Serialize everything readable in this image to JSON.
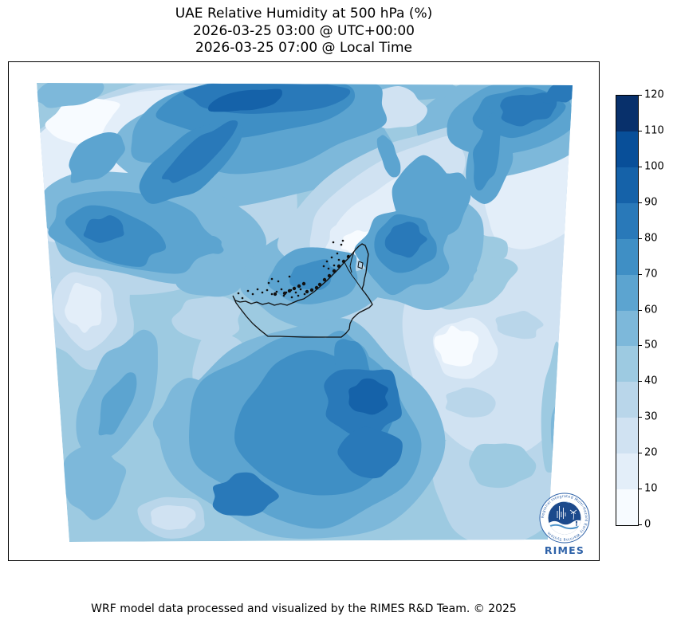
{
  "title": {
    "line1": "UAE Relative Humidity at 500 hPa (%)",
    "line2": "2026-03-25 03:00 @ UTC+00:00",
    "line3": "2026-03-25 07:00 @ Local Time"
  },
  "footer": {
    "credit": "WRF model data processed and visualized by the RIMES R&D Team. © 2025"
  },
  "logo": {
    "wordmark": "RIMES",
    "motto": "Regional Integrated Multi-Hazard Early Warning System"
  },
  "colors": {
    "axes_border": "#000000",
    "outline": "#111111",
    "logo_navy": "#1c4a8c",
    "logo_blue": "#2e62a8",
    "logo_wave": "#4e93c9"
  },
  "chart_data": {
    "type": "heatmap",
    "variable": "Relative Humidity",
    "pressure_level_hpa": 500,
    "units": "%",
    "region": "UAE and surrounding area (WRF model domain)",
    "title": "UAE Relative Humidity at 500 hPa (%)",
    "valid_time_utc": "2026-03-25 03:00 @ UTC+00:00",
    "valid_time_local": "2026-03-25 07:00 @ Local Time",
    "legend_position": "right",
    "grid": false,
    "colorbar": {
      "min": 0,
      "max": 120,
      "step": 10,
      "ticks": [
        0,
        10,
        20,
        30,
        40,
        50,
        60,
        70,
        80,
        90,
        100,
        110,
        120
      ],
      "palette": [
        "#f7fbff",
        "#e3eef9",
        "#d0e2f2",
        "#b9d6ea",
        "#9dcae1",
        "#7db8da",
        "#5ca4d0",
        "#3f8fc5",
        "#2979b9",
        "#1562a9",
        "#084f99",
        "#08306b"
      ],
      "orientation": "vertical"
    },
    "value_range_on_map": [
      10,
      100
    ],
    "projection_quad": [
      [
        35,
        26
      ],
      [
        707,
        29
      ],
      [
        676,
        599
      ],
      [
        76,
        602
      ]
    ],
    "base_level": 4,
    "feature_format": "[cx,cy,rx,ry,rotation_deg,level] plot px; level k = k*10..(k+1)*10 %RH",
    "contour_features": [
      [
        190,
        150,
        195,
        135,
        -20,
        3
      ],
      [
        620,
        300,
        150,
        200,
        5,
        3
      ],
      [
        520,
        330,
        105,
        92,
        0,
        3
      ],
      [
        405,
        508,
        46,
        30,
        0,
        3
      ],
      [
        205,
        572,
        42,
        27,
        0,
        3
      ],
      [
        98,
        312,
        62,
        68,
        -10,
        3
      ],
      [
        250,
        323,
        42,
        30,
        0,
        3
      ],
      [
        268,
        390,
        38,
        48,
        0,
        3
      ],
      [
        615,
        520,
        85,
        85,
        0,
        3
      ],
      [
        330,
        250,
        24,
        18,
        0,
        3
      ],
      [
        160,
        130,
        158,
        95,
        -22,
        2
      ],
      [
        640,
        158,
        98,
        95,
        0,
        2
      ],
      [
        620,
        330,
        125,
        155,
        5,
        2
      ],
      [
        98,
        312,
        40,
        48,
        -10,
        2
      ],
      [
        405,
        508,
        29,
        18,
        0,
        2
      ],
      [
        205,
        572,
        27,
        17,
        0,
        2
      ],
      [
        128,
        105,
        112,
        62,
        -22,
        1
      ],
      [
        655,
        165,
        66,
        72,
        0,
        1
      ],
      [
        572,
        362,
        40,
        38,
        0,
        1
      ],
      [
        95,
        308,
        24,
        30,
        -10,
        1
      ],
      [
        92,
        72,
        46,
        26,
        -22,
        0
      ],
      [
        562,
        357,
        26,
        24,
        0,
        0
      ],
      [
        640,
        330,
        28,
        17,
        0,
        3
      ],
      [
        578,
        426,
        32,
        20,
        0,
        3
      ],
      [
        595,
        235,
        28,
        20,
        0,
        4
      ],
      [
        618,
        505,
        42,
        30,
        0,
        4
      ],
      [
        580,
        275,
        55,
        30,
        -15,
        4
      ],
      [
        688,
        440,
        18,
        80,
        2,
        4
      ],
      [
        305,
        98,
        180,
        80,
        -6,
        5
      ],
      [
        625,
        75,
        112,
        62,
        -8,
        5
      ],
      [
        480,
        33,
        92,
        20,
        -3,
        5
      ],
      [
        180,
        208,
        150,
        68,
        8,
        5
      ],
      [
        385,
        270,
        88,
        57,
        -10,
        5
      ],
      [
        505,
        230,
        88,
        78,
        0,
        5
      ],
      [
        374,
        465,
        170,
        140,
        5,
        5
      ],
      [
        140,
        418,
        42,
        82,
        25,
        5
      ],
      [
        235,
        453,
        48,
        58,
        0,
        5
      ],
      [
        105,
        525,
        40,
        45,
        10,
        5
      ],
      [
        75,
        35,
        48,
        20,
        -15,
        5
      ],
      [
        255,
        268,
        45,
        25,
        0,
        5
      ],
      [
        560,
        268,
        28,
        14,
        -15,
        5
      ],
      [
        690,
        470,
        10,
        45,
        2,
        5
      ],
      [
        468,
        175,
        150,
        62,
        -33,
        3
      ],
      [
        475,
        172,
        118,
        45,
        -34,
        2
      ],
      [
        462,
        195,
        72,
        30,
        -38,
        1
      ],
      [
        435,
        222,
        36,
        26,
        -20,
        1
      ],
      [
        480,
        58,
        40,
        26,
        0,
        2
      ],
      [
        438,
        226,
        20,
        14,
        -20,
        0
      ],
      [
        315,
        75,
        162,
        57,
        -8,
        6
      ],
      [
        110,
        120,
        42,
        24,
        -30,
        6
      ],
      [
        630,
        70,
        82,
        44,
        -8,
        6
      ],
      [
        605,
        118,
        26,
        62,
        12,
        6
      ],
      [
        155,
        213,
        105,
        48,
        10,
        6
      ],
      [
        382,
        268,
        57,
        34,
        -10,
        6
      ],
      [
        495,
        235,
        57,
        52,
        0,
        6
      ],
      [
        545,
        180,
        29,
        46,
        20,
        6
      ],
      [
        520,
        165,
        38,
        45,
        10,
        6
      ],
      [
        372,
        465,
        142,
        112,
        5,
        6
      ],
      [
        420,
        390,
        36,
        56,
        -10,
        6
      ],
      [
        135,
        430,
        18,
        40,
        25,
        6
      ],
      [
        477,
        118,
        11,
        30,
        -20,
        6
      ],
      [
        253,
        230,
        16,
        12,
        0,
        6
      ],
      [
        315,
        55,
        128,
        36,
        -6,
        7
      ],
      [
        230,
        125,
        72,
        32,
        -35,
        7
      ],
      [
        640,
        63,
        57,
        30,
        -8,
        7
      ],
      [
        600,
        115,
        16,
        48,
        12,
        7
      ],
      [
        135,
        218,
        60,
        32,
        15,
        7
      ],
      [
        380,
        267,
        31,
        18,
        -10,
        7
      ],
      [
        495,
        228,
        39,
        34,
        0,
        7
      ],
      [
        385,
        455,
        97,
        87,
        10,
        7
      ],
      [
        430,
        385,
        21,
        39,
        -10,
        7
      ],
      [
        320,
        42,
        97,
        24,
        -4,
        8
      ],
      [
        240,
        115,
        57,
        17,
        -40,
        8
      ],
      [
        650,
        58,
        36,
        19,
        -8,
        8
      ],
      [
        700,
        33,
        33,
        15,
        -25,
        8
      ],
      [
        120,
        210,
        26,
        16,
        0,
        8
      ],
      [
        497,
        222,
        25,
        21,
        0,
        8
      ],
      [
        445,
        425,
        50,
        44,
        0,
        8
      ],
      [
        455,
        490,
        39,
        31,
        0,
        8
      ],
      [
        295,
        545,
        39,
        27,
        0,
        8
      ],
      [
        295,
        48,
        46,
        13,
        -10,
        9
      ],
      [
        450,
        420,
        25,
        21,
        0,
        9
      ]
    ],
    "uae_boundary": {
      "outline": [
        [
          281,
          293
        ],
        [
          284,
          299
        ],
        [
          290,
          301
        ],
        [
          297,
          300
        ],
        [
          304,
          303
        ],
        [
          311,
          301
        ],
        [
          318,
          304
        ],
        [
          326,
          302
        ],
        [
          333,
          305
        ],
        [
          341,
          303
        ],
        [
          349,
          305
        ],
        [
          356,
          302
        ],
        [
          363,
          299
        ],
        [
          370,
          297
        ],
        [
          376,
          293
        ],
        [
          383,
          288
        ],
        [
          391,
          281
        ],
        [
          399,
          274
        ],
        [
          407,
          266
        ],
        [
          414,
          259
        ],
        [
          420,
          252
        ],
        [
          426,
          246
        ],
        [
          431,
          240
        ],
        [
          435,
          235
        ],
        [
          439,
          231
        ],
        [
          443,
          228
        ],
        [
          447,
          230
        ],
        [
          449,
          235
        ],
        [
          451,
          241
        ],
        [
          450,
          248
        ],
        [
          449,
          256
        ],
        [
          448,
          264
        ],
        [
          446,
          272
        ],
        [
          445,
          279
        ],
        [
          443,
          285
        ],
        [
          447,
          290
        ],
        [
          452,
          297
        ],
        [
          456,
          304
        ],
        [
          452,
          308
        ],
        [
          446,
          311
        ],
        [
          440,
          314
        ],
        [
          436,
          317
        ],
        [
          431,
          322
        ],
        [
          428,
          328
        ],
        [
          427,
          335
        ],
        [
          423,
          340
        ],
        [
          417,
          345
        ],
        [
          400,
          345
        ],
        [
          370,
          345
        ],
        [
          340,
          344
        ],
        [
          325,
          344
        ],
        [
          315,
          336
        ],
        [
          306,
          328
        ],
        [
          298,
          319
        ],
        [
          291,
          310
        ],
        [
          285,
          302
        ],
        [
          281,
          293
        ]
      ],
      "inner_borders": [
        [
          [
            421,
            251
          ],
          [
            425,
            259
          ],
          [
            430,
            267
          ],
          [
            436,
            275
          ],
          [
            440,
            281
          ],
          [
            443,
            285
          ]
        ],
        [
          [
            433,
            238
          ],
          [
            430,
            247
          ],
          [
            428,
            256
          ],
          [
            430,
            264
          ]
        ],
        [
          [
            439,
            250
          ],
          [
            444,
            252
          ],
          [
            443,
            259
          ],
          [
            438,
            257
          ],
          [
            439,
            250
          ]
        ]
      ],
      "islands": [
        [
          288,
          290
        ],
        [
          293,
          296
        ],
        [
          300,
          287
        ],
        [
          306,
          291
        ],
        [
          312,
          285
        ],
        [
          318,
          289
        ],
        [
          324,
          286
        ],
        [
          330,
          291
        ],
        [
          336,
          288
        ],
        [
          342,
          285
        ],
        [
          348,
          289
        ],
        [
          354,
          286
        ],
        [
          360,
          289
        ],
        [
          366,
          285
        ],
        [
          371,
          291
        ],
        [
          345,
          293
        ],
        [
          355,
          295
        ],
        [
          363,
          293
        ],
        [
          326,
          277
        ],
        [
          330,
          272
        ],
        [
          338,
          275
        ],
        [
          352,
          269
        ],
        [
          407,
          226
        ],
        [
          417,
          229
        ],
        [
          419,
          224
        ],
        [
          412,
          240
        ],
        [
          405,
          245
        ],
        [
          399,
          250
        ],
        [
          395,
          256
        ],
        [
          401,
          259
        ],
        [
          408,
          255
        ],
        [
          414,
          248
        ]
      ],
      "coast_marks": [
        [
          352,
          287
        ],
        [
          358,
          284
        ],
        [
          364,
          281
        ],
        [
          370,
          278
        ],
        [
          374,
          288
        ],
        [
          380,
          286
        ],
        [
          386,
          283
        ],
        [
          390,
          279
        ],
        [
          396,
          273
        ],
        [
          402,
          268
        ],
        [
          408,
          262
        ],
        [
          414,
          256
        ],
        [
          420,
          250
        ],
        [
          426,
          244
        ],
        [
          346,
          290
        ],
        [
          334,
          291
        ]
      ]
    }
  }
}
